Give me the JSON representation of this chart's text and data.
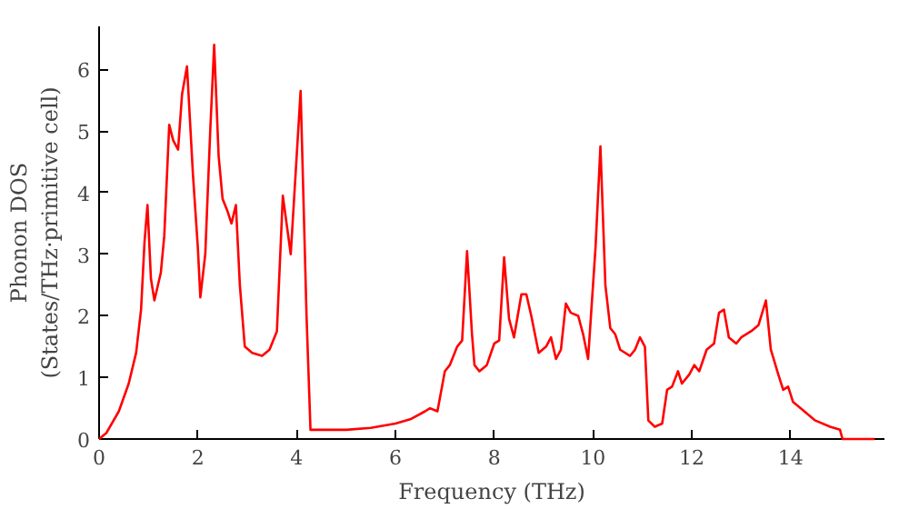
{
  "chart_data": {
    "type": "line",
    "xlabel": "Frequency (THz)",
    "ylabel": "Phonon DOS\n(States/THz·primitive cell)",
    "xlim": [
      0,
      15.9
    ],
    "ylim": [
      0,
      6.7
    ],
    "xticks": [
      0,
      2,
      4,
      6,
      8,
      10,
      12,
      14
    ],
    "yticks": [
      0,
      1,
      2,
      3,
      4,
      5,
      6
    ],
    "grid": false,
    "series": [
      {
        "color": "#ff0000",
        "x": [
          0,
          0.15,
          0.4,
          0.6,
          0.75,
          0.85,
          0.92,
          0.98,
          1.05,
          1.12,
          1.25,
          1.32,
          1.42,
          1.5,
          1.6,
          1.68,
          1.78,
          1.9,
          2.0,
          2.05,
          2.15,
          2.25,
          2.33,
          2.42,
          2.5,
          2.6,
          2.68,
          2.77,
          2.85,
          2.95,
          3.1,
          3.3,
          3.45,
          3.6,
          3.72,
          3.88,
          4.08,
          4.2,
          4.28,
          4.6,
          5.0,
          5.5,
          6.0,
          6.3,
          6.6,
          6.7,
          6.85,
          7.0,
          7.1,
          7.25,
          7.35,
          7.45,
          7.55,
          7.6,
          7.7,
          7.85,
          8.0,
          8.1,
          8.2,
          8.3,
          8.4,
          8.55,
          8.65,
          8.75,
          8.9,
          9.05,
          9.15,
          9.25,
          9.35,
          9.45,
          9.55,
          9.7,
          9.8,
          9.9,
          10.05,
          10.15,
          10.25,
          10.35,
          10.45,
          10.55,
          10.75,
          10.85,
          10.95,
          11.05,
          11.12,
          11.25,
          11.4,
          11.5,
          11.6,
          11.72,
          11.8,
          11.95,
          12.05,
          12.15,
          12.3,
          12.45,
          12.55,
          12.65,
          12.75,
          12.9,
          13.0,
          13.2,
          13.35,
          13.5,
          13.6,
          13.75,
          13.85,
          13.95,
          14.05,
          14.2,
          14.5,
          14.8,
          15.0,
          15.05,
          15.7
        ],
        "values": [
          0,
          0.1,
          0.45,
          0.9,
          1.4,
          2.1,
          3.2,
          3.8,
          2.6,
          2.25,
          2.7,
          3.3,
          5.1,
          4.85,
          4.7,
          5.6,
          6.05,
          4.3,
          3.1,
          2.3,
          3.0,
          5.0,
          6.4,
          4.6,
          3.9,
          3.7,
          3.5,
          3.8,
          2.5,
          1.5,
          1.4,
          1.35,
          1.45,
          1.75,
          3.95,
          3.0,
          5.65,
          2.0,
          0.15,
          0.15,
          0.15,
          0.18,
          0.25,
          0.32,
          0.45,
          0.5,
          0.45,
          1.1,
          1.2,
          1.5,
          1.6,
          3.05,
          1.7,
          1.2,
          1.1,
          1.2,
          1.55,
          1.6,
          2.95,
          1.95,
          1.65,
          2.35,
          2.35,
          2.0,
          1.4,
          1.5,
          1.65,
          1.3,
          1.45,
          2.2,
          2.05,
          2.0,
          1.7,
          1.3,
          3.1,
          4.75,
          2.5,
          1.8,
          1.7,
          1.45,
          1.35,
          1.45,
          1.65,
          1.5,
          0.3,
          0.2,
          0.25,
          0.8,
          0.85,
          1.1,
          0.9,
          1.05,
          1.2,
          1.1,
          1.45,
          1.55,
          2.05,
          2.1,
          1.65,
          1.55,
          1.65,
          1.75,
          1.85,
          2.25,
          1.45,
          1.05,
          0.8,
          0.85,
          0.6,
          0.5,
          0.3,
          0.2,
          0.15,
          0,
          0
        ]
      }
    ]
  }
}
